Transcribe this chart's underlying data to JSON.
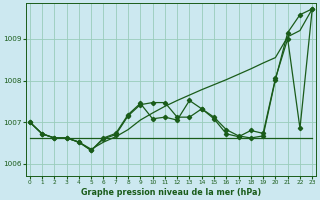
{
  "title": "Graphe pression niveau de la mer (hPa)",
  "background_color": "#cce8f0",
  "grid_color": "#99ccbb",
  "line_color": "#1a5c1a",
  "x_ticks": [
    0,
    1,
    2,
    3,
    4,
    5,
    6,
    7,
    8,
    9,
    10,
    11,
    12,
    13,
    14,
    15,
    16,
    17,
    18,
    19,
    20,
    21,
    22,
    23
  ],
  "y_ticks": [
    1006,
    1007,
    1008,
    1009
  ],
  "ylim": [
    1005.7,
    1009.85
  ],
  "xlim": [
    -0.3,
    23.3
  ],
  "smooth_line": [
    1007.0,
    1006.72,
    1006.62,
    1006.62,
    1006.52,
    1006.35,
    1006.52,
    1006.65,
    1006.82,
    1007.05,
    1007.22,
    1007.38,
    1007.52,
    1007.65,
    1007.78,
    1007.9,
    1008.02,
    1008.15,
    1008.28,
    1008.42,
    1008.55,
    1009.05,
    1009.2,
    1009.72
  ],
  "jagged_line": [
    1007.0,
    1006.72,
    1006.62,
    1006.62,
    1006.52,
    1006.32,
    1006.6,
    1006.7,
    1007.15,
    1007.42,
    1007.47,
    1007.47,
    1007.12,
    1007.12,
    1007.32,
    1007.12,
    1006.82,
    1006.67,
    1006.62,
    1006.67,
    1008.02,
    1009.15,
    1009.58,
    1009.72
  ],
  "flat_line": [
    1006.62,
    1006.62,
    1006.62,
    1006.62,
    1006.62,
    1006.62,
    1006.62,
    1006.62,
    1006.62,
    1006.62,
    1006.62,
    1006.62,
    1006.62,
    1006.62,
    1006.62,
    1006.62,
    1006.62,
    1006.62,
    1006.62,
    1006.62,
    1006.62,
    1006.62,
    1006.62,
    1006.62
  ],
  "volatile_line": [
    1007.0,
    1006.72,
    1006.62,
    1006.62,
    1006.52,
    1006.32,
    1006.62,
    1006.73,
    1007.18,
    1007.45,
    1007.08,
    1007.12,
    1007.05,
    1007.52,
    1007.32,
    1007.08,
    1006.72,
    1006.65,
    1006.8,
    1006.73,
    1008.05,
    1009.0,
    1006.85,
    1009.72
  ]
}
